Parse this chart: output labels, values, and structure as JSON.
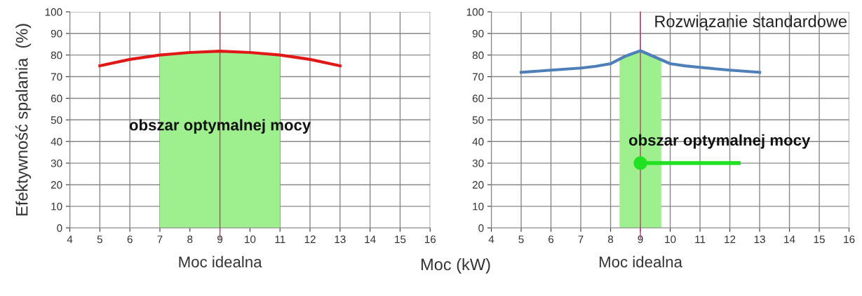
{
  "chart_data": [
    {
      "type": "line",
      "ylabel": "Efektywność spalania  (%)",
      "x": [
        5,
        6,
        7,
        8,
        9,
        10,
        11,
        12,
        13
      ],
      "series": [
        {
          "color": "#e01818",
          "values": [
            75,
            78,
            80,
            81.2,
            81.8,
            81.2,
            80,
            78,
            75
          ]
        }
      ],
      "xlim": [
        4,
        16
      ],
      "xticks": [
        4,
        5,
        6,
        7,
        8,
        9,
        10,
        11,
        12,
        13,
        14,
        15,
        16
      ],
      "ylim": [
        0,
        100
      ],
      "yticks": [
        0,
        10,
        20,
        30,
        40,
        50,
        60,
        70,
        80,
        90,
        100
      ],
      "grid": true,
      "line_style": "solid",
      "bands": [
        {
          "axis": "x",
          "from": 7,
          "to": 11,
          "color": "#9ef08e"
        }
      ],
      "ref_lines": [
        {
          "axis": "x",
          "value": 9,
          "label": "Moc idealna",
          "color": "#c03a78"
        }
      ],
      "annotations": [
        "obszar optymalnej mocy"
      ]
    },
    {
      "type": "line",
      "title": "Rozwiązanie standardowe",
      "xlabel": "Moc (kW)",
      "x": [
        5,
        6,
        7,
        7.5,
        8,
        8.5,
        9,
        9.5,
        10,
        10.5,
        11,
        12,
        13
      ],
      "series": [
        {
          "color": "#4f7fb8",
          "values": [
            72,
            73,
            74,
            74.8,
            76,
            79.5,
            82,
            79,
            76,
            75,
            74.3,
            73,
            72
          ]
        }
      ],
      "xlim": [
        4,
        16
      ],
      "xticks": [
        4,
        5,
        6,
        7,
        8,
        9,
        10,
        11,
        12,
        13,
        14,
        15,
        16
      ],
      "ylim": [
        0,
        100
      ],
      "yticks": [
        0,
        10,
        20,
        30,
        40,
        50,
        60,
        70,
        80,
        90,
        100
      ],
      "grid": true,
      "line_style": "solid",
      "bands": [
        {
          "axis": "x",
          "from": 8.3,
          "to": 9.7,
          "color": "#9ef08e"
        }
      ],
      "ref_lines": [
        {
          "axis": "x",
          "value": 9,
          "label": "Moc idealna",
          "color": "#c03a78"
        }
      ],
      "annotations": [
        {
          "text": "obszar optymalnej mocy",
          "x": 9,
          "y": 30
        }
      ]
    }
  ]
}
